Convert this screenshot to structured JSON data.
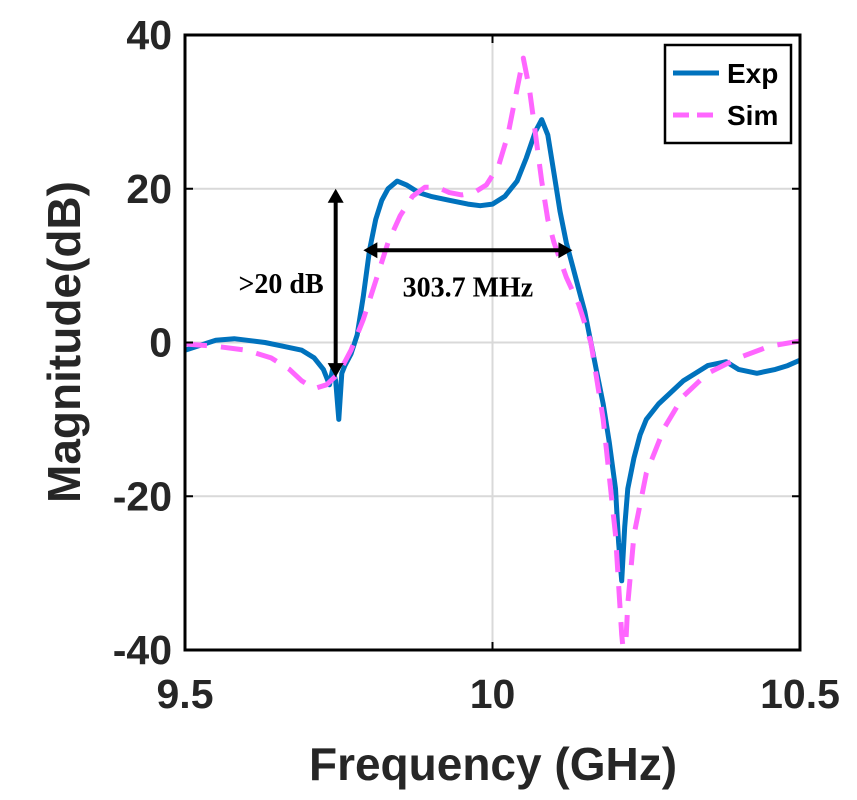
{
  "chart_data": {
    "type": "line",
    "xlabel": "Frequency (GHz)",
    "ylabel": "Magnitude(dB)",
    "xlim": [
      9.5,
      10.5
    ],
    "ylim": [
      -40,
      40
    ],
    "x_ticks": [
      9.5,
      10,
      10.5
    ],
    "x_tick_labels": [
      "9.5",
      "10",
      "10.5"
    ],
    "y_ticks": [
      -40,
      -20,
      0,
      20,
      40
    ],
    "y_tick_labels": [
      "-40",
      "-20",
      "0",
      "20",
      "40"
    ],
    "grid": true,
    "legend_position": "top-right",
    "series": [
      {
        "name": "Exp",
        "style": "solid",
        "color": "#0072bd",
        "points": [
          [
            9.5,
            -1
          ],
          [
            9.52,
            -0.5
          ],
          [
            9.55,
            0.3
          ],
          [
            9.58,
            0.5
          ],
          [
            9.6,
            0.3
          ],
          [
            9.63,
            0
          ],
          [
            9.66,
            -0.5
          ],
          [
            9.69,
            -1
          ],
          [
            9.71,
            -2
          ],
          [
            9.725,
            -3.5
          ],
          [
            9.735,
            -5.5
          ],
          [
            9.74,
            -3.5
          ],
          [
            9.745,
            -5
          ],
          [
            9.75,
            -10
          ],
          [
            9.755,
            -4
          ],
          [
            9.76,
            -3
          ],
          [
            9.77,
            -1.5
          ],
          [
            9.78,
            1
          ],
          [
            9.79,
            6
          ],
          [
            9.8,
            12
          ],
          [
            9.81,
            16
          ],
          [
            9.82,
            18.5
          ],
          [
            9.83,
            20
          ],
          [
            9.845,
            21
          ],
          [
            9.86,
            20.5
          ],
          [
            9.88,
            19.5
          ],
          [
            9.9,
            19
          ],
          [
            9.93,
            18.5
          ],
          [
            9.96,
            18
          ],
          [
            9.98,
            17.8
          ],
          [
            10.0,
            18
          ],
          [
            10.02,
            19
          ],
          [
            10.04,
            21
          ],
          [
            10.055,
            24
          ],
          [
            10.07,
            27.5
          ],
          [
            10.08,
            29
          ],
          [
            10.09,
            27
          ],
          [
            10.1,
            22
          ],
          [
            10.11,
            17
          ],
          [
            10.12,
            13
          ],
          [
            10.13,
            10
          ],
          [
            10.14,
            7
          ],
          [
            10.15,
            4
          ],
          [
            10.16,
            0
          ],
          [
            10.17,
            -4
          ],
          [
            10.18,
            -8
          ],
          [
            10.19,
            -13
          ],
          [
            10.2,
            -19
          ],
          [
            10.205,
            -26
          ],
          [
            10.21,
            -31
          ],
          [
            10.215,
            -24
          ],
          [
            10.22,
            -19
          ],
          [
            10.23,
            -15
          ],
          [
            10.24,
            -12
          ],
          [
            10.25,
            -10
          ],
          [
            10.27,
            -8
          ],
          [
            10.29,
            -6.5
          ],
          [
            10.31,
            -5
          ],
          [
            10.33,
            -4
          ],
          [
            10.35,
            -3
          ],
          [
            10.38,
            -2.5
          ],
          [
            10.4,
            -3.5
          ],
          [
            10.43,
            -4
          ],
          [
            10.46,
            -3.5
          ],
          [
            10.48,
            -3
          ],
          [
            10.5,
            -2.3
          ]
        ]
      },
      {
        "name": "Sim",
        "style": "dashed",
        "color": "#ff66ff",
        "points": [
          [
            9.5,
            -0.2
          ],
          [
            9.55,
            -0.5
          ],
          [
            9.6,
            -1
          ],
          [
            9.64,
            -2
          ],
          [
            9.67,
            -3.5
          ],
          [
            9.69,
            -5
          ],
          [
            9.71,
            -6
          ],
          [
            9.73,
            -5.5
          ],
          [
            9.75,
            -4
          ],
          [
            9.77,
            -1
          ],
          [
            9.79,
            3
          ],
          [
            9.81,
            8
          ],
          [
            9.83,
            13
          ],
          [
            9.85,
            16.5
          ],
          [
            9.87,
            19
          ],
          [
            9.89,
            20.2
          ],
          [
            9.91,
            20.2
          ],
          [
            9.93,
            19.5
          ],
          [
            9.95,
            19.2
          ],
          [
            9.97,
            19.5
          ],
          [
            9.99,
            20.5
          ],
          [
            10.01,
            23
          ],
          [
            10.025,
            27
          ],
          [
            10.04,
            33
          ],
          [
            10.05,
            37
          ],
          [
            10.06,
            33
          ],
          [
            10.07,
            27
          ],
          [
            10.08,
            21
          ],
          [
            10.09,
            16
          ],
          [
            10.1,
            13
          ],
          [
            10.12,
            8.5
          ],
          [
            10.14,
            5
          ],
          [
            10.16,
            0
          ],
          [
            10.18,
            -10
          ],
          [
            10.2,
            -25
          ],
          [
            10.21,
            -38
          ],
          [
            10.215,
            -42
          ],
          [
            10.22,
            -34
          ],
          [
            10.23,
            -25
          ],
          [
            10.25,
            -17
          ],
          [
            10.28,
            -11
          ],
          [
            10.31,
            -7
          ],
          [
            10.35,
            -4
          ],
          [
            10.4,
            -2
          ],
          [
            10.45,
            -0.5
          ],
          [
            10.5,
            0.2
          ]
        ]
      }
    ],
    "annotations": [
      {
        "text": ">20 dB",
        "type": "vertical-double-arrow",
        "x": 9.745,
        "y_from": -4.5,
        "y_to": 20
      },
      {
        "text": "303.7 MHz",
        "type": "horizontal-double-arrow",
        "y": 12,
        "x_from": 9.79,
        "x_to": 10.13
      }
    ]
  }
}
